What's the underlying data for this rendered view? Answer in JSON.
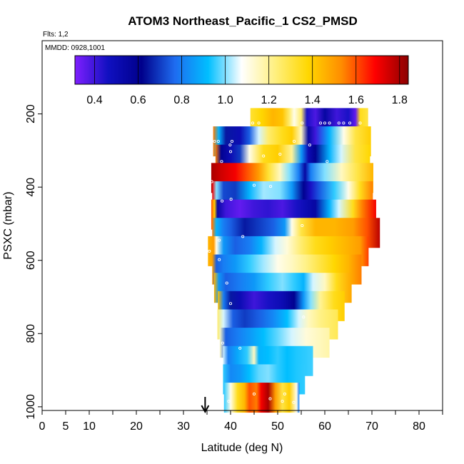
{
  "chart_data": {
    "type": "heatmap",
    "title": "ATOM3 Northeast_Pacific_1 CS2_PMSD",
    "flights_label": "Flts: 1,2",
    "dates_label": "MMDD: 0928,1001",
    "xlabel": "Latitude (deg N)",
    "ylabel": "PSXC (mbar)",
    "xlim": [
      0,
      85
    ],
    "ylim": [
      1010,
      0
    ],
    "x_ticks": [
      0,
      5,
      10,
      20,
      30,
      40,
      50,
      60,
      70,
      80
    ],
    "x_tick_labels": [
      "0",
      "5",
      "10",
      "20",
      "30",
      "40",
      "50",
      "60",
      "70",
      "80"
    ],
    "y_ticks": [
      200,
      400,
      600,
      800,
      1000
    ],
    "y_tick_labels": [
      "200",
      "400",
      "600",
      "800",
      "1000"
    ],
    "colorbar": {
      "range": [
        0.31,
        1.84
      ],
      "ticks": [
        0.4,
        0.6,
        0.8,
        1.0,
        1.2,
        1.4,
        1.6,
        1.8
      ],
      "tick_labels": [
        "0.4",
        "0.6",
        "0.8",
        "1.0",
        "1.2",
        "1.4",
        "1.6",
        "1.8"
      ],
      "colors": [
        "#7f1fff",
        "#1010c0",
        "#00008b",
        "#1e6cf0",
        "#00bfff",
        "#ffffff",
        "#fff080",
        "#ffd700",
        "#ff8c00",
        "#ff0000",
        "#8b0000"
      ]
    },
    "marker": {
      "latitude": 34.6,
      "symbol": "down-arrow"
    },
    "rows": [
      {
        "p": 225,
        "x0": 44.2,
        "x1": 69.2,
        "stops": [
          [
            44.2,
            1.32
          ],
          [
            46.5,
            1.38
          ],
          [
            49,
            1.45
          ],
          [
            51,
            1.42
          ],
          [
            52.5,
            1.25
          ],
          [
            53.5,
            1.1
          ],
          [
            55,
            1.25
          ],
          [
            56.2,
            0.45
          ],
          [
            58,
            0.38
          ],
          [
            60,
            0.55
          ],
          [
            62.5,
            0.4
          ],
          [
            65,
            0.45
          ],
          [
            66.5,
            0.35
          ],
          [
            67.5,
            1.35
          ],
          [
            69.2,
            1.3
          ]
        ]
      },
      {
        "p": 275,
        "x0": 36.3,
        "x1": 69.8,
        "stops": [
          [
            36.3,
            1.55
          ],
          [
            37.5,
            0.9
          ],
          [
            39,
            0.65
          ],
          [
            42,
            0.5
          ],
          [
            44,
            0.75
          ],
          [
            46,
            1.05
          ],
          [
            48,
            1.25
          ],
          [
            51,
            1.35
          ],
          [
            53,
            1.4
          ],
          [
            55,
            1.15
          ],
          [
            56.5,
            0.55
          ],
          [
            58,
            0.4
          ],
          [
            61,
            0.9
          ],
          [
            64,
            1.1
          ],
          [
            66.5,
            1.3
          ],
          [
            69.8,
            1.4
          ]
        ]
      },
      {
        "p": 325,
        "x0": 36.8,
        "x1": 69.6,
        "stops": [
          [
            36.8,
            1.55
          ],
          [
            38,
            0.6
          ],
          [
            40,
            0.5
          ],
          [
            42,
            0.7
          ],
          [
            44,
            1.1
          ],
          [
            47,
            1.35
          ],
          [
            50,
            1.4
          ],
          [
            53,
            1.2
          ],
          [
            55,
            0.85
          ],
          [
            56.5,
            0.5
          ],
          [
            58,
            0.6
          ],
          [
            61,
            0.9
          ],
          [
            63.5,
            1.05
          ],
          [
            66.5,
            1.3
          ],
          [
            69.6,
            1.38
          ]
        ]
      },
      {
        "p": 375,
        "x0": 35.9,
        "x1": 70.3,
        "stops": [
          [
            35.9,
            1.8
          ],
          [
            38,
            1.75
          ],
          [
            41,
            1.7
          ],
          [
            43.5,
            1.6
          ],
          [
            46,
            1.5
          ],
          [
            48,
            1.32
          ],
          [
            50.5,
            1.15
          ],
          [
            52.5,
            1.0
          ],
          [
            54.5,
            0.8
          ],
          [
            55.8,
            0.55
          ],
          [
            57,
            0.8
          ],
          [
            60,
            1.0
          ],
          [
            63.5,
            1.15
          ],
          [
            67,
            1.3
          ],
          [
            70.3,
            1.45
          ]
        ]
      },
      {
        "p": 425,
        "x0": 36.1,
        "x1": 70.2,
        "stops": [
          [
            36.1,
            1.7
          ],
          [
            37,
            1.0
          ],
          [
            38.5,
            0.72
          ],
          [
            41,
            0.7
          ],
          [
            44,
            0.9
          ],
          [
            47,
            1.02
          ],
          [
            50.5,
            1.0
          ],
          [
            53,
            0.85
          ],
          [
            55.5,
            0.6
          ],
          [
            57,
            0.45
          ],
          [
            59,
            0.75
          ],
          [
            62,
            0.95
          ],
          [
            65,
            1.1
          ],
          [
            67.5,
            1.35
          ],
          [
            70.2,
            1.55
          ]
        ]
      },
      {
        "p": 475,
        "x0": 35.9,
        "x1": 70.9,
        "stops": [
          [
            35.9,
            1.6
          ],
          [
            36.6,
            1.4
          ],
          [
            37.2,
            0.55
          ],
          [
            39,
            0.4
          ],
          [
            42,
            0.35
          ],
          [
            45,
            0.4
          ],
          [
            48,
            0.42
          ],
          [
            51,
            0.38
          ],
          [
            54,
            0.45
          ],
          [
            56,
            0.5
          ],
          [
            58,
            0.55
          ],
          [
            61,
            0.9
          ],
          [
            63,
            1.05
          ],
          [
            66,
            1.35
          ],
          [
            68,
            1.55
          ],
          [
            70.9,
            1.7
          ]
        ]
      },
      {
        "p": 525,
        "x0": 36.1,
        "x1": 71.7,
        "stops": [
          [
            36.1,
            1.55
          ],
          [
            37,
            0.9
          ],
          [
            38.5,
            0.8
          ],
          [
            40,
            0.75
          ],
          [
            43,
            0.65
          ],
          [
            46,
            0.7
          ],
          [
            49,
            0.75
          ],
          [
            51.5,
            0.85
          ],
          [
            53,
            1.1
          ],
          [
            55,
            1.3
          ],
          [
            58,
            1.45
          ],
          [
            62,
            1.45
          ],
          [
            66,
            1.5
          ],
          [
            69,
            1.6
          ],
          [
            71.7,
            1.78
          ]
        ]
      },
      {
        "p": 575,
        "x0": 35.2,
        "x1": 69.3,
        "stops": [
          [
            35.2,
            1.45
          ],
          [
            36.4,
            1.5
          ],
          [
            37,
            1.1
          ],
          [
            38.5,
            0.85
          ],
          [
            41,
            0.75
          ],
          [
            44,
            0.8
          ],
          [
            46.5,
            0.9
          ],
          [
            49.5,
            1.05
          ],
          [
            52,
            1.12
          ],
          [
            55,
            1.25
          ],
          [
            58,
            1.35
          ],
          [
            61,
            1.4
          ],
          [
            64.5,
            1.45
          ],
          [
            67.5,
            1.5
          ],
          [
            69.3,
            1.62
          ]
        ]
      },
      {
        "p": 625,
        "x0": 36.1,
        "x1": 67.8,
        "stops": [
          [
            36.1,
            1.5
          ],
          [
            37,
            0.75
          ],
          [
            38.5,
            0.8
          ],
          [
            41,
            0.85
          ],
          [
            44,
            0.95
          ],
          [
            47,
            1.02
          ],
          [
            50,
            1.1
          ],
          [
            53,
            1.15
          ],
          [
            56,
            1.22
          ],
          [
            59,
            1.3
          ],
          [
            62,
            1.38
          ],
          [
            65,
            1.45
          ],
          [
            67.8,
            1.55
          ]
        ]
      },
      {
        "p": 675,
        "x0": 36.5,
        "x1": 65.7,
        "stops": [
          [
            36.5,
            1.45
          ],
          [
            37.5,
            0.85
          ],
          [
            39,
            0.75
          ],
          [
            42,
            0.8
          ],
          [
            45,
            0.85
          ],
          [
            48,
            0.95
          ],
          [
            51,
            1.0
          ],
          [
            53.5,
            0.95
          ],
          [
            55.5,
            0.9
          ],
          [
            57.5,
            1.05
          ],
          [
            60,
            1.15
          ],
          [
            62.5,
            1.35
          ],
          [
            65.7,
            1.48
          ]
        ]
      },
      {
        "p": 725,
        "x0": 37.3,
        "x1": 64.2,
        "stops": [
          [
            37.3,
            1.42
          ],
          [
            38.5,
            0.8
          ],
          [
            40,
            0.65
          ],
          [
            42,
            0.5
          ],
          [
            45,
            0.4
          ],
          [
            48,
            0.45
          ],
          [
            51,
            0.5
          ],
          [
            53.5,
            0.6
          ],
          [
            55.5,
            0.85
          ],
          [
            57,
            1.0
          ],
          [
            59,
            1.2
          ],
          [
            62,
            1.35
          ],
          [
            64.2,
            1.4
          ]
        ]
      },
      {
        "p": 775,
        "x0": 37.2,
        "x1": 62.8,
        "stops": [
          [
            37.2,
            1.25
          ],
          [
            38.5,
            1.05
          ],
          [
            40.5,
            0.75
          ],
          [
            43,
            0.7
          ],
          [
            46,
            0.75
          ],
          [
            49,
            0.82
          ],
          [
            52,
            0.92
          ],
          [
            54.5,
            1.05
          ],
          [
            56.5,
            1.15
          ],
          [
            59,
            1.22
          ],
          [
            62.8,
            1.28
          ]
        ]
      },
      {
        "p": 825,
        "x0": 37.7,
        "x1": 61.0,
        "stops": [
          [
            37.7,
            1.15
          ],
          [
            39,
            0.75
          ],
          [
            41.5,
            0.8
          ],
          [
            44,
            0.85
          ],
          [
            47,
            0.92
          ],
          [
            50,
            0.98
          ],
          [
            53,
            1.05
          ],
          [
            56,
            1.12
          ],
          [
            58.5,
            1.15
          ],
          [
            61,
            1.18
          ]
        ]
      },
      {
        "p": 875,
        "x0": 38.4,
        "x1": 57.5,
        "stops": [
          [
            38.4,
            1.05
          ],
          [
            39.5,
            0.8
          ],
          [
            41.5,
            0.88
          ],
          [
            43.5,
            0.95
          ],
          [
            45,
            1.15
          ],
          [
            46,
            0.9
          ],
          [
            48,
            0.92
          ],
          [
            50,
            0.95
          ],
          [
            52,
            0.92
          ],
          [
            54,
            0.94
          ],
          [
            56,
            0.95
          ],
          [
            57.5,
            0.96
          ]
        ]
      },
      {
        "p": 925,
        "x0": 38.4,
        "x1": 55.8,
        "stops": [
          [
            38.4,
            0.95
          ],
          [
            40,
            0.82
          ],
          [
            42,
            0.85
          ],
          [
            44,
            0.92
          ],
          [
            46,
            0.98
          ],
          [
            48,
            1.0
          ],
          [
            50,
            0.95
          ],
          [
            52,
            0.92
          ],
          [
            54,
            0.94
          ],
          [
            55.8,
            0.95
          ]
        ]
      },
      {
        "p": 975,
        "x0": 38.6,
        "x1": 54.6,
        "stops": [
          [
            38.6,
            0.95
          ],
          [
            40,
            1.1
          ],
          [
            41.5,
            1.35
          ],
          [
            43,
            1.45
          ],
          [
            44,
            1.6
          ],
          [
            45.5,
            1.55
          ],
          [
            46.5,
            1.7
          ],
          [
            48,
            1.8
          ],
          [
            49.5,
            1.5
          ],
          [
            51,
            1.3
          ],
          [
            52.5,
            1.4
          ],
          [
            54,
            1.1
          ],
          [
            54.6,
            0.8
          ]
        ]
      }
    ],
    "points": [
      [
        44.7,
        225
      ],
      [
        46,
        225
      ],
      [
        55.2,
        225
      ],
      [
        59.1,
        225
      ],
      [
        60,
        225
      ],
      [
        61,
        225
      ],
      [
        63,
        225
      ],
      [
        64,
        225
      ],
      [
        65.3,
        225
      ],
      [
        67.5,
        225
      ],
      [
        36.6,
        275
      ],
      [
        40.3,
        275
      ],
      [
        53.5,
        275
      ],
      [
        56.8,
        285
      ],
      [
        39.9,
        285
      ],
      [
        37.4,
        275
      ],
      [
        38.1,
        330
      ],
      [
        40,
        303
      ],
      [
        47,
        315
      ],
      [
        50.5,
        310
      ],
      [
        60.5,
        330
      ],
      [
        36,
        385
      ],
      [
        45,
        395
      ],
      [
        48.5,
        398
      ],
      [
        38.2,
        438
      ],
      [
        40.1,
        433
      ],
      [
        55.2,
        505
      ],
      [
        37.6,
        545
      ],
      [
        42.6,
        535
      ],
      [
        35.5,
        575
      ],
      [
        37.6,
        598
      ],
      [
        39.2,
        662
      ],
      [
        40,
        718
      ],
      [
        55.5,
        755
      ],
      [
        38.3,
        826
      ],
      [
        42,
        840
      ],
      [
        45,
        965
      ],
      [
        51.5,
        965
      ],
      [
        48.4,
        978
      ],
      [
        39.6,
        985
      ],
      [
        51,
        985
      ],
      [
        53.4,
        988
      ]
    ]
  }
}
